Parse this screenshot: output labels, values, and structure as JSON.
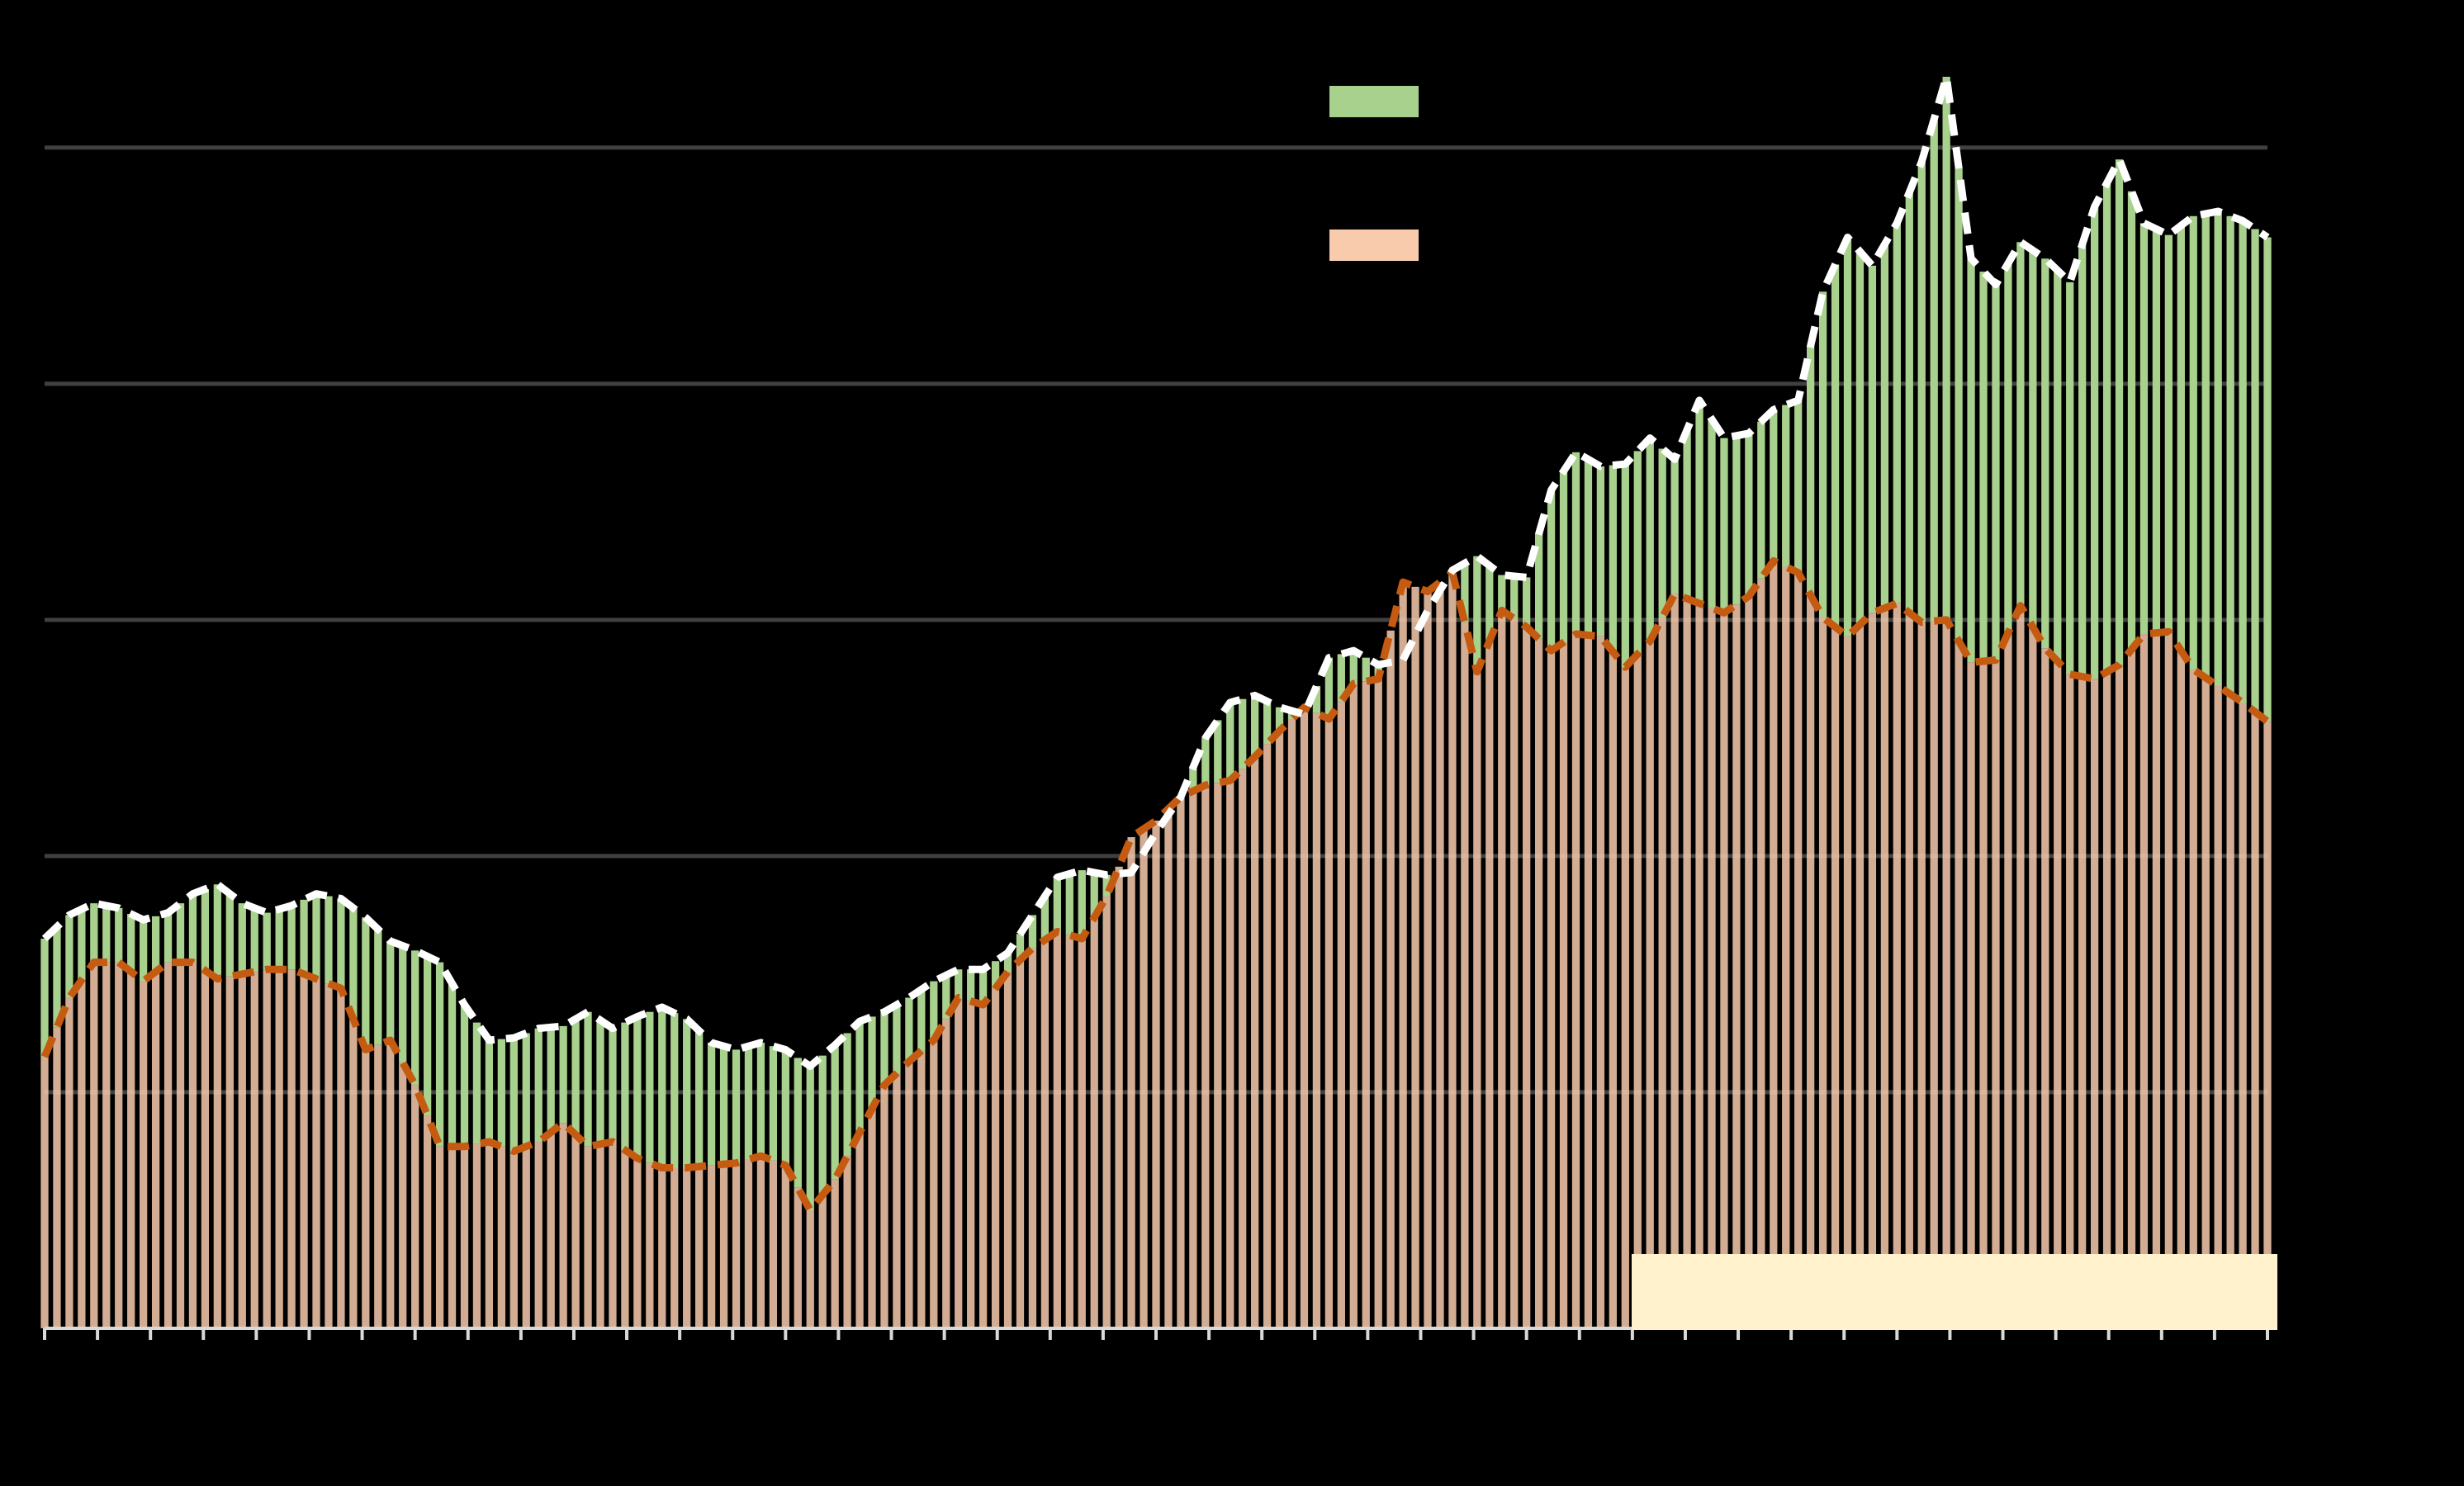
{
  "chart_data": {
    "type": "area",
    "title": "",
    "xlabel": "",
    "ylabel": "",
    "ylim": [
      0,
      5.3
    ],
    "y_gridlines": [
      1,
      2,
      3,
      4,
      5
    ],
    "grid": true,
    "x_ticks_count": 43,
    "series": [
      {
        "color": "#a9d18e",
        "line_color": "#ffffff",
        "values": [
          1.65,
          1.75,
          1.8,
          1.78,
          1.73,
          1.76,
          1.84,
          1.88,
          1.8,
          1.76,
          1.79,
          1.84,
          1.82,
          1.74,
          1.64,
          1.6,
          1.55,
          1.37,
          1.22,
          1.23,
          1.27,
          1.28,
          1.34,
          1.27,
          1.32,
          1.36,
          1.31,
          1.21,
          1.18,
          1.21,
          1.18,
          1.11,
          1.2,
          1.3,
          1.34,
          1.4,
          1.47,
          1.52,
          1.52,
          1.59,
          1.75,
          1.91,
          1.94,
          1.92,
          1.93,
          2.1,
          2.25,
          2.5,
          2.65,
          2.68,
          2.63,
          2.6,
          2.84,
          2.87,
          2.81,
          2.83,
          3.04,
          3.21,
          3.27,
          3.19,
          3.18,
          3.55,
          3.71,
          3.65,
          3.66,
          3.77,
          3.68,
          3.93,
          3.77,
          3.79,
          3.89,
          3.93,
          4.39,
          4.62,
          4.5,
          4.68,
          4.94,
          5.3,
          4.53,
          4.42,
          4.6,
          4.53,
          4.43,
          4.75,
          4.95,
          4.68,
          4.63,
          4.71,
          4.73,
          4.69,
          4.62
        ]
      },
      {
        "color": "#f8cbad",
        "line_color": "#c55a11",
        "values": [
          1.15,
          1.4,
          1.55,
          1.55,
          1.47,
          1.55,
          1.55,
          1.48,
          1.5,
          1.52,
          1.52,
          1.48,
          1.44,
          1.18,
          1.22,
          1.03,
          0.77,
          0.77,
          0.79,
          0.75,
          0.79,
          0.87,
          0.77,
          0.79,
          0.72,
          0.68,
          0.68,
          0.69,
          0.7,
          0.73,
          0.69,
          0.5,
          0.63,
          0.83,
          1.03,
          1.13,
          1.22,
          1.4,
          1.37,
          1.51,
          1.61,
          1.68,
          1.65,
          1.83,
          2.08,
          2.15,
          2.25,
          2.3,
          2.32,
          2.42,
          2.53,
          2.63,
          2.58,
          2.73,
          2.75,
          3.16,
          3.12,
          3.2,
          2.78,
          3.04,
          2.97,
          2.87,
          2.94,
          2.93,
          2.8,
          2.91,
          3.11,
          3.07,
          3.03,
          3.1,
          3.25,
          3.2,
          3.01,
          2.93,
          3.03,
          3.07,
          2.99,
          3.0,
          2.82,
          2.83,
          3.06,
          2.88,
          2.77,
          2.75,
          2.81,
          2.94,
          2.95,
          2.79,
          2.72,
          2.65,
          2.57
        ]
      }
    ]
  },
  "legend": {
    "items": [
      {
        "color": "#a9d18e"
      },
      {
        "color": "#f8cbad"
      }
    ]
  },
  "highlight_box": {
    "color": "#fff2cc"
  }
}
